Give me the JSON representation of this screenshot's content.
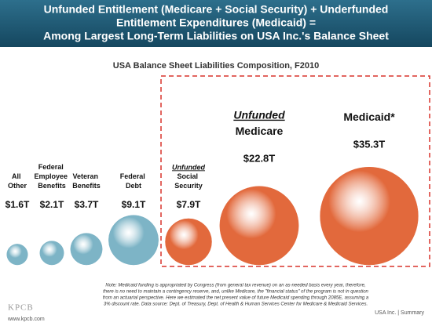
{
  "header": {
    "title_lines": [
      "Unfunded Entitlement (Medicare + Social Security) + Underfunded",
      "Entitlement Expenditures (Medicaid) =",
      "Among Largest Long-Term Liabilities on USA Inc.'s Balance Sheet"
    ]
  },
  "chart_data": {
    "type": "bubble",
    "title": "USA Balance Sheet Liabilities Composition, F2010",
    "categories": [
      "All Other",
      "Federal Employee Benefits",
      "Veteran Benefits",
      "Federal Debt",
      "Social Security",
      "Medicare",
      "Medicaid*"
    ],
    "qualifiers": [
      null,
      null,
      null,
      null,
      "Unfunded",
      "Unfunded",
      null
    ],
    "values": [
      1.6,
      2.1,
      3.7,
      9.1,
      7.9,
      22.8,
      35.3
    ],
    "value_labels": [
      "$1.6T",
      "$2.1T",
      "$3.7T",
      "$9.1T",
      "$7.9T",
      "$22.8T",
      "$35.3T"
    ],
    "colors": [
      "#7db4c6",
      "#7db4c6",
      "#7db4c6",
      "#7db4c6",
      "#e2693c",
      "#e2693c",
      "#e2693c"
    ]
  },
  "note_lines": [
    "Note: Medicaid funding is appropriated by Congress (from general tax revenue) on an as-needed basis every year, therefore,",
    "there is no need to maintain a contingency reserve, and, unlike Medicare, the \"financial status\" of the program is not in question",
    "from an actuarial perspective. Here we estimated the net present value of future Medicaid spending through 2085E, assuming a",
    "3% discount rate. Data source: Dept. of Treasury, Dept. of Health & Human Services Center for Medicare & Medicaid Services."
  ],
  "footer": {
    "logo": "KPCB",
    "url": "www.kpcb.com",
    "section": "USA Inc. | Summary"
  }
}
